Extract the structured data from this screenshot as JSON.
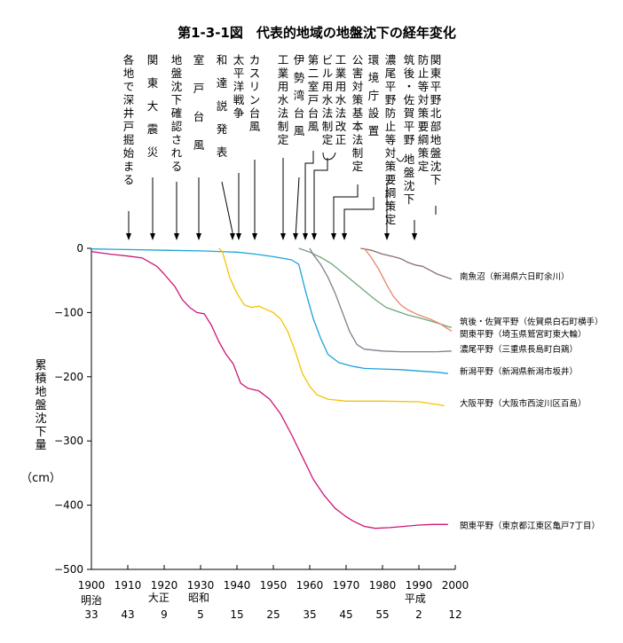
{
  "chart_data": {
    "type": "line",
    "title": "第1-3-1図　代表的地域の地盤沈下の経年変化",
    "ylabel": "累積地盤沈下量",
    "yunit": "（cm）",
    "xlim": [
      1900,
      2000
    ],
    "ylim": [
      -500,
      0
    ],
    "xticks": [
      1900,
      1910,
      1920,
      1930,
      1940,
      1950,
      1960,
      1970,
      1980,
      1990,
      2000
    ],
    "yticks": [
      0,
      -100,
      -200,
      -300,
      -400,
      -500
    ],
    "ytick_labels": [
      "0",
      "−100",
      "−200",
      "−300",
      "−400",
      "−500"
    ],
    "eras": [
      {
        "label": "明治",
        "year": 1900
      },
      {
        "label": "大正",
        "year": 1919
      },
      {
        "label": "昭和",
        "year": 1929
      },
      {
        "label": "平成",
        "year": 1989
      }
    ],
    "era_years": [
      {
        "label": "33",
        "year": 1900
      },
      {
        "label": "43",
        "year": 1910
      },
      {
        "label": "9",
        "year": 1920
      },
      {
        "label": "5",
        "year": 1930
      },
      {
        "label": "15",
        "year": 1940
      },
      {
        "label": "25",
        "year": 1950
      },
      {
        "label": "35",
        "year": 1960
      },
      {
        "label": "45",
        "year": 1970
      },
      {
        "label": "55",
        "year": 1980
      },
      {
        "label": "2",
        "year": 1990
      },
      {
        "label": "12",
        "year": 2000
      }
    ],
    "annotations": [
      {
        "text": "各地で深井戸掘始まる",
        "year": 1910
      },
      {
        "text": "関東大震災",
        "year": 1917
      },
      {
        "text": "地盤沈下確認される",
        "year": 1923
      },
      {
        "text": "室戸台風",
        "year": 1934
      },
      {
        "text": "和達説発表",
        "year": 1939
      },
      {
        "text": "太平洋戦争",
        "year": 1941
      },
      {
        "text": "カスリン台風",
        "year": 1947
      },
      {
        "text": "工業用水法制定",
        "year": 1956
      },
      {
        "text": "伊勢湾台風",
        "year": 1959
      },
      {
        "text": "第二室戸台風",
        "year": 1961
      },
      {
        "text": "ビル用水法制定",
        "year": 1962
      },
      {
        "text": "工業用水法改正",
        "year": 1962
      },
      {
        "text": "公害対策基本法制定",
        "year": 1967
      },
      {
        "text": "環境庁設置",
        "year": 1971
      },
      {
        "text": "濃尾平野",
        "year": 1985
      },
      {
        "text": "防止等対策要綱策定",
        "year": 1985
      },
      {
        "text": "筑後・佐賀平野",
        "year": 1985
      },
      {
        "text": "地盤沈下",
        "year": 1985
      },
      {
        "text": "関東平野北部",
        "year": 1991
      },
      {
        "text": "地盤沈下",
        "year": 1991
      },
      {
        "text": "防止等対策要綱策定",
        "year": 1991
      }
    ],
    "series": [
      {
        "name": "南魚沼（新潟県六日町余川）",
        "color": "#8a6d72",
        "points": [
          [
            1974,
            0
          ],
          [
            1977,
            -3
          ],
          [
            1980,
            -9
          ],
          [
            1983,
            -13
          ],
          [
            1985,
            -16
          ],
          [
            1987,
            -22
          ],
          [
            1989,
            -26
          ],
          [
            1991,
            -28
          ],
          [
            1993,
            -34
          ],
          [
            1995,
            -40
          ],
          [
            1997,
            -44
          ],
          [
            1999,
            -48
          ]
        ]
      },
      {
        "name": "筑後・佐賀平野（佐賀県白石町横手）",
        "color": "#6fa67a",
        "points": [
          [
            1957,
            0
          ],
          [
            1960,
            -6
          ],
          [
            1963,
            -14
          ],
          [
            1966,
            -24
          ],
          [
            1969,
            -38
          ],
          [
            1972,
            -52
          ],
          [
            1975,
            -66
          ],
          [
            1978,
            -80
          ],
          [
            1981,
            -92
          ],
          [
            1984,
            -98
          ],
          [
            1987,
            -104
          ],
          [
            1990,
            -108
          ],
          [
            1993,
            -113
          ],
          [
            1996,
            -118
          ],
          [
            1998,
            -122
          ],
          [
            1999,
            -123
          ]
        ]
      },
      {
        "name": "関東平野（埼玉県鷲宮町東大輪）",
        "color": "#e8866a",
        "points": [
          [
            1975,
            0
          ],
          [
            1977,
            -15
          ],
          [
            1979,
            -33
          ],
          [
            1981,
            -55
          ],
          [
            1983,
            -75
          ],
          [
            1985,
            -88
          ],
          [
            1987,
            -96
          ],
          [
            1990,
            -104
          ],
          [
            1993,
            -110
          ],
          [
            1996,
            -118
          ],
          [
            1999,
            -129
          ]
        ]
      },
      {
        "name": "濃尾平野（三重県長島町白鶏）",
        "color": "#7f7f8e",
        "points": [
          [
            1960,
            0
          ],
          [
            1961,
            -10
          ],
          [
            1963,
            -25
          ],
          [
            1965,
            -45
          ],
          [
            1967,
            -70
          ],
          [
            1969,
            -100
          ],
          [
            1971,
            -130
          ],
          [
            1973,
            -150
          ],
          [
            1975,
            -157
          ],
          [
            1980,
            -160
          ],
          [
            1985,
            -161
          ],
          [
            1990,
            -161
          ],
          [
            1995,
            -161
          ],
          [
            1999,
            -160
          ]
        ]
      },
      {
        "name": "新潟平野（新潟県新潟市坂井）",
        "color": "#1ba3d8",
        "points": [
          [
            1900,
            -1
          ],
          [
            1910,
            -2
          ],
          [
            1920,
            -3
          ],
          [
            1930,
            -4
          ],
          [
            1940,
            -6
          ],
          [
            1945,
            -9
          ],
          [
            1950,
            -13
          ],
          [
            1955,
            -18
          ],
          [
            1957,
            -25
          ],
          [
            1959,
            -70
          ],
          [
            1961,
            -110
          ],
          [
            1963,
            -140
          ],
          [
            1965,
            -165
          ],
          [
            1968,
            -178
          ],
          [
            1972,
            -184
          ],
          [
            1975,
            -187
          ],
          [
            1980,
            -188
          ],
          [
            1985,
            -189
          ],
          [
            1990,
            -191
          ],
          [
            1995,
            -193
          ],
          [
            1998,
            -195
          ]
        ]
      },
      {
        "name": "大阪平野（大阪市西淀川区百島）",
        "color": "#f5c400",
        "points": [
          [
            1935,
            0
          ],
          [
            1936,
            -5
          ],
          [
            1937,
            -25
          ],
          [
            1938,
            -45
          ],
          [
            1940,
            -70
          ],
          [
            1942,
            -88
          ],
          [
            1944,
            -92
          ],
          [
            1946,
            -90
          ],
          [
            1948,
            -95
          ],
          [
            1950,
            -100
          ],
          [
            1952,
            -110
          ],
          [
            1954,
            -130
          ],
          [
            1956,
            -160
          ],
          [
            1958,
            -195
          ],
          [
            1960,
            -215
          ],
          [
            1962,
            -228
          ],
          [
            1965,
            -235
          ],
          [
            1970,
            -238
          ],
          [
            1980,
            -238
          ],
          [
            1990,
            -239
          ],
          [
            1997,
            -245
          ]
        ]
      },
      {
        "name": "関東平野（東京都江東区亀戸7丁目）",
        "color": "#cc1677",
        "points": [
          [
            1900,
            -5
          ],
          [
            1905,
            -9
          ],
          [
            1910,
            -12
          ],
          [
            1914,
            -15
          ],
          [
            1918,
            -28
          ],
          [
            1920,
            -40
          ],
          [
            1923,
            -60
          ],
          [
            1925,
            -80
          ],
          [
            1927,
            -92
          ],
          [
            1929,
            -100
          ],
          [
            1931,
            -102
          ],
          [
            1933,
            -120
          ],
          [
            1935,
            -145
          ],
          [
            1937,
            -165
          ],
          [
            1939,
            -180
          ],
          [
            1941,
            -210
          ],
          [
            1943,
            -218
          ],
          [
            1946,
            -222
          ],
          [
            1949,
            -235
          ],
          [
            1952,
            -258
          ],
          [
            1955,
            -290
          ],
          [
            1958,
            -325
          ],
          [
            1961,
            -360
          ],
          [
            1964,
            -385
          ],
          [
            1967,
            -405
          ],
          [
            1970,
            -418
          ],
          [
            1972,
            -425
          ],
          [
            1975,
            -433
          ],
          [
            1978,
            -436
          ],
          [
            1982,
            -435
          ],
          [
            1986,
            -433
          ],
          [
            1990,
            -431
          ],
          [
            1994,
            -430
          ],
          [
            1998,
            -430
          ]
        ]
      }
    ]
  }
}
